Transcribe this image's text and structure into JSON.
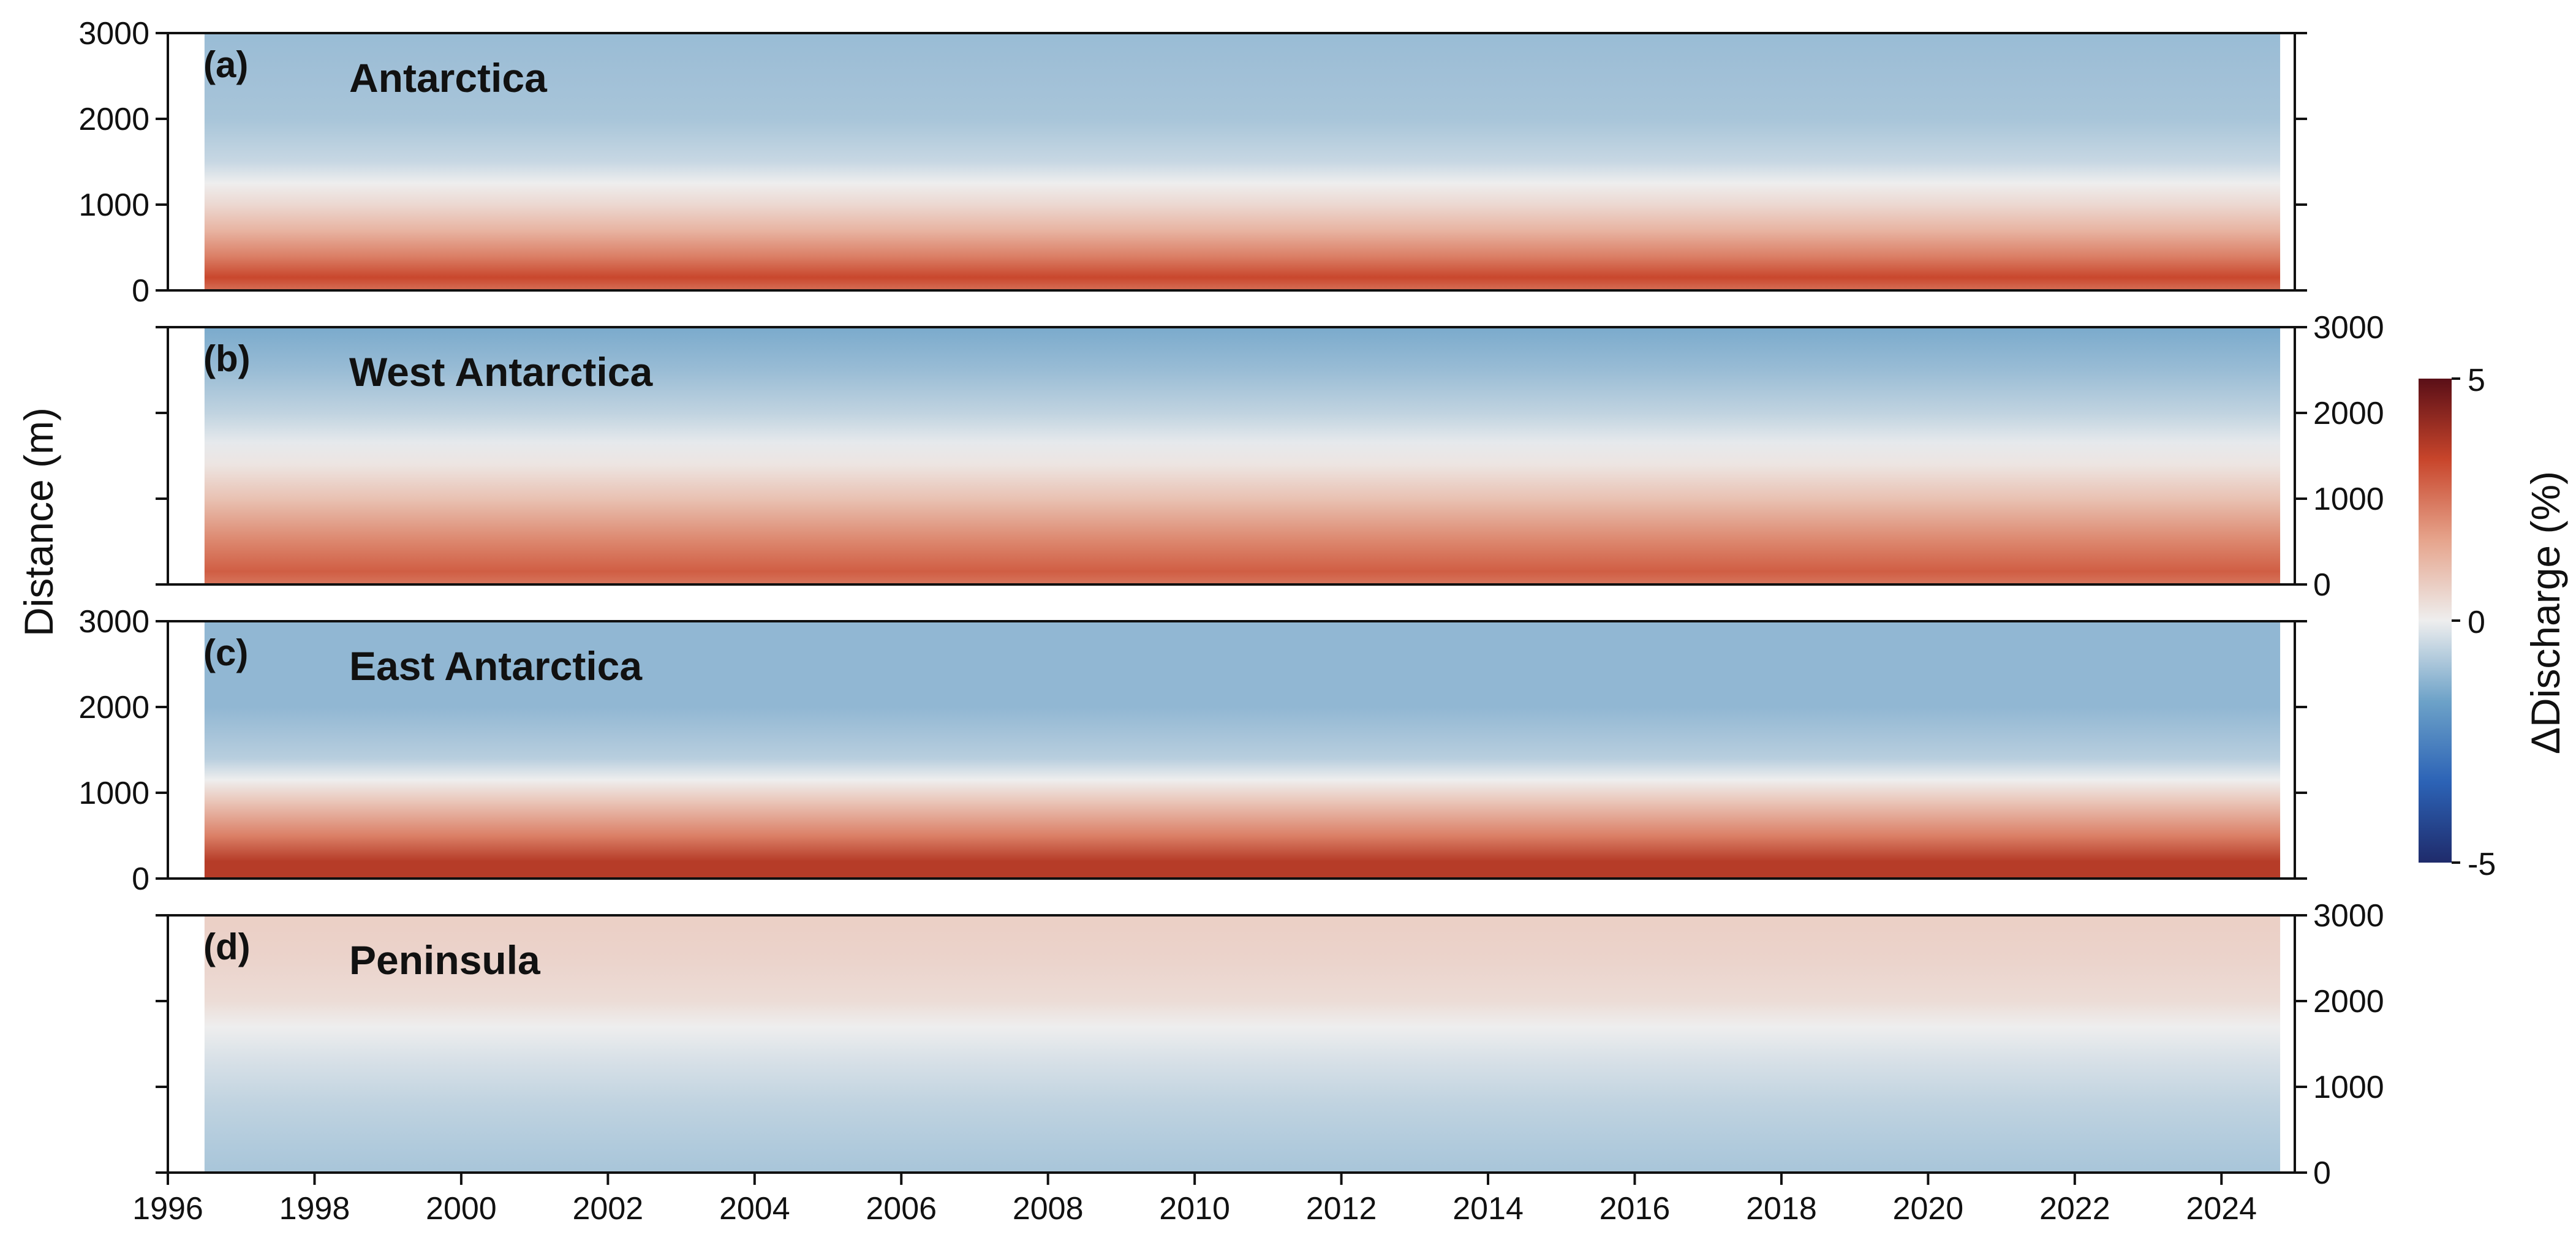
{
  "chart_data": {
    "type": "heatmap",
    "xlabel": "",
    "ylabel": "Distance (m)",
    "colorbar": {
      "label": "ΔDischarge (%)",
      "range": [
        -5,
        5
      ],
      "ticks": [
        "5",
        "0",
        "-5"
      ],
      "colors": [
        "#1f2b6b",
        "#2c63b6",
        "#6da2c8",
        "#eeeeee",
        "#e6a48c",
        "#c8452b",
        "#5a0f17"
      ]
    },
    "x_ticks": [
      "1996",
      "1998",
      "2000",
      "2002",
      "2004",
      "2006",
      "2008",
      "2010",
      "2012",
      "2014",
      "2016",
      "2018",
      "2020",
      "2022",
      "2024"
    ],
    "xlim": [
      1996,
      2025
    ],
    "data_x_range": [
      1996.5,
      2024.8
    ],
    "y_ticks": [
      "0",
      "1000",
      "2000",
      "3000"
    ],
    "ylim": [
      0,
      3000
    ],
    "panels": [
      {
        "tag": "(a)",
        "title": "Antarctica",
        "ytick_side": "left",
        "profile": [
          {
            "distance": 0,
            "value": 2.6
          },
          {
            "distance": 150,
            "value": 3.3
          },
          {
            "distance": 400,
            "value": 2.3
          },
          {
            "distance": 700,
            "value": 1.3
          },
          {
            "distance": 1000,
            "value": 0.5
          },
          {
            "distance": 1250,
            "value": 0.0
          },
          {
            "distance": 1500,
            "value": -0.5
          },
          {
            "distance": 2000,
            "value": -0.9
          },
          {
            "distance": 2500,
            "value": -1.0
          },
          {
            "distance": 3000,
            "value": -1.1
          }
        ]
      },
      {
        "tag": "(b)",
        "title": "West Antarctica",
        "ytick_side": "right",
        "profile": [
          {
            "distance": 0,
            "value": 2.5
          },
          {
            "distance": 150,
            "value": 2.9
          },
          {
            "distance": 500,
            "value": 2.2
          },
          {
            "distance": 1000,
            "value": 1.0
          },
          {
            "distance": 1400,
            "value": 0.2
          },
          {
            "distance": 1650,
            "value": -0.1
          },
          {
            "distance": 2000,
            "value": -0.6
          },
          {
            "distance": 2500,
            "value": -1.1
          },
          {
            "distance": 3000,
            "value": -1.5
          }
        ]
      },
      {
        "tag": "(c)",
        "title": "East Antarctica",
        "ytick_side": "left",
        "profile": [
          {
            "distance": 0,
            "value": 3.6
          },
          {
            "distance": 200,
            "value": 3.6
          },
          {
            "distance": 500,
            "value": 2.3
          },
          {
            "distance": 900,
            "value": 0.9
          },
          {
            "distance": 1150,
            "value": 0.0
          },
          {
            "distance": 1400,
            "value": -0.7
          },
          {
            "distance": 2000,
            "value": -1.2
          },
          {
            "distance": 2500,
            "value": -1.2
          },
          {
            "distance": 3000,
            "value": -1.2
          }
        ]
      },
      {
        "tag": "(d)",
        "title": "Peninsula",
        "ytick_side": "right",
        "profile": [
          {
            "distance": 0,
            "value": -0.9
          },
          {
            "distance": 300,
            "value": -0.8
          },
          {
            "distance": 800,
            "value": -0.6
          },
          {
            "distance": 1300,
            "value": -0.3
          },
          {
            "distance": 1700,
            "value": 0.0
          },
          {
            "distance": 2000,
            "value": 0.4
          },
          {
            "distance": 2500,
            "value": 0.6
          },
          {
            "distance": 3000,
            "value": 0.7
          }
        ]
      }
    ]
  }
}
